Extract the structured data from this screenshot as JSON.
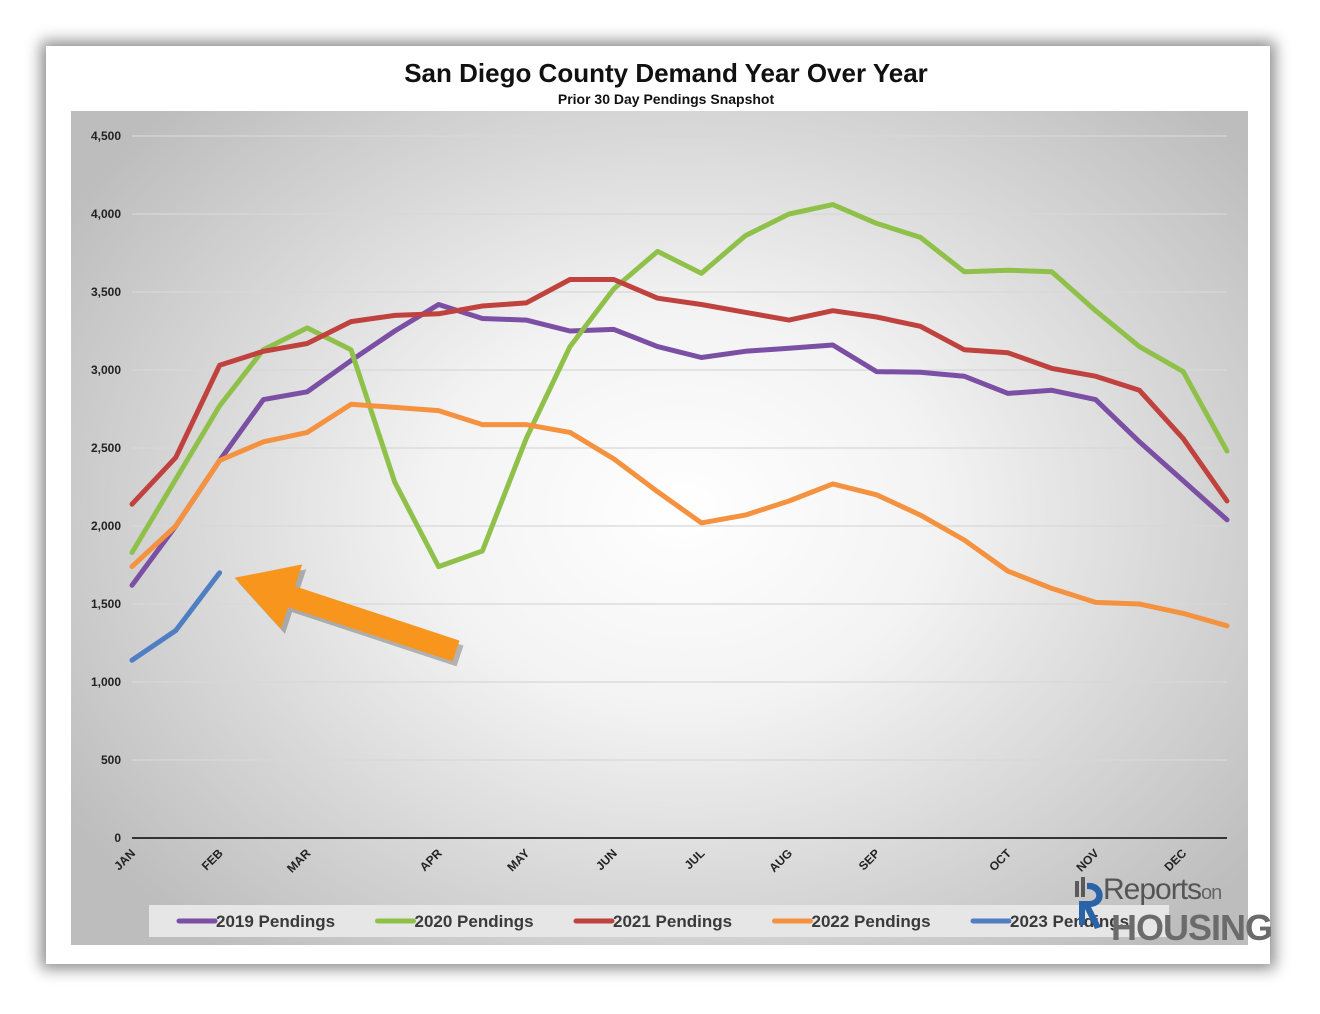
{
  "chart_data": {
    "type": "line",
    "title": "San Diego County Demand Year Over Year",
    "subtitle": "Prior 30 Day Pendings Snapshot",
    "xlabel": "",
    "ylabel": "",
    "ylim": [
      0,
      4500
    ],
    "yticks": [
      0,
      500,
      1000,
      1500,
      2000,
      2500,
      3000,
      3500,
      4000,
      4500
    ],
    "ytick_labels": [
      "0",
      "500",
      "1,000",
      "1,500",
      "2,000",
      "2,500",
      "3,000",
      "3,500",
      "4,000",
      "4,500"
    ],
    "month_labels": [
      "JAN",
      "FEB",
      "MAR",
      "APR",
      "MAY",
      "JUN",
      "JUL",
      "AUG",
      "SEP",
      "OCT",
      "NOV",
      "DEC"
    ],
    "month_label_index": [
      0,
      2,
      4,
      7,
      9,
      11,
      13,
      15,
      17,
      20,
      22,
      24
    ],
    "num_points": 26,
    "grid": true,
    "legend_position": "bottom",
    "series": [
      {
        "name": "2019 Pendings",
        "color": "#7b4fa3",
        "values": [
          1620,
          2000,
          2420,
          2810,
          2860,
          3060,
          3250,
          3420,
          3330,
          3320,
          3250,
          3260,
          3150,
          3080,
          3120,
          3140,
          3160,
          2990,
          2985,
          2960,
          2850,
          2870,
          2810,
          2540,
          2290,
          2040
        ]
      },
      {
        "name": "2020 Pendings",
        "color": "#8fc14a",
        "values": [
          1830,
          2300,
          2770,
          3130,
          3270,
          3130,
          2280,
          1740,
          1840,
          2560,
          3150,
          3520,
          3760,
          3620,
          3860,
          4000,
          4060,
          3940,
          3850,
          3630,
          3640,
          3630,
          3380,
          3150,
          2990,
          2480
        ]
      },
      {
        "name": "2021 Pendings",
        "color": "#c0423e",
        "values": [
          2140,
          2440,
          3030,
          3120,
          3170,
          3310,
          3350,
          3360,
          3410,
          3430,
          3580,
          3580,
          3460,
          3420,
          3370,
          3320,
          3380,
          3340,
          3280,
          3130,
          3110,
          3010,
          2960,
          2870,
          2560,
          2160
        ]
      },
      {
        "name": "2022 Pendings",
        "color": "#f4923f",
        "values": [
          1740,
          2000,
          2420,
          2540,
          2600,
          2780,
          2760,
          2740,
          2650,
          2650,
          2600,
          2430,
          2220,
          2020,
          2070,
          2160,
          2270,
          2200,
          2070,
          1910,
          1710,
          1600,
          1510,
          1500,
          1440,
          1360
        ]
      },
      {
        "name": "2023 Pendings",
        "color": "#4f7fc2",
        "values": [
          1140,
          1330,
          1700
        ]
      }
    ],
    "annotation": "arrow pointing to latest 2023 Pendings value"
  },
  "logo": {
    "line1": "Reports",
    "line1_suffix": "on",
    "line2": "HOUSING"
  },
  "colors": {
    "arrow": "#f7951d",
    "axis": "#333333",
    "grid": "#d8d8d8"
  }
}
